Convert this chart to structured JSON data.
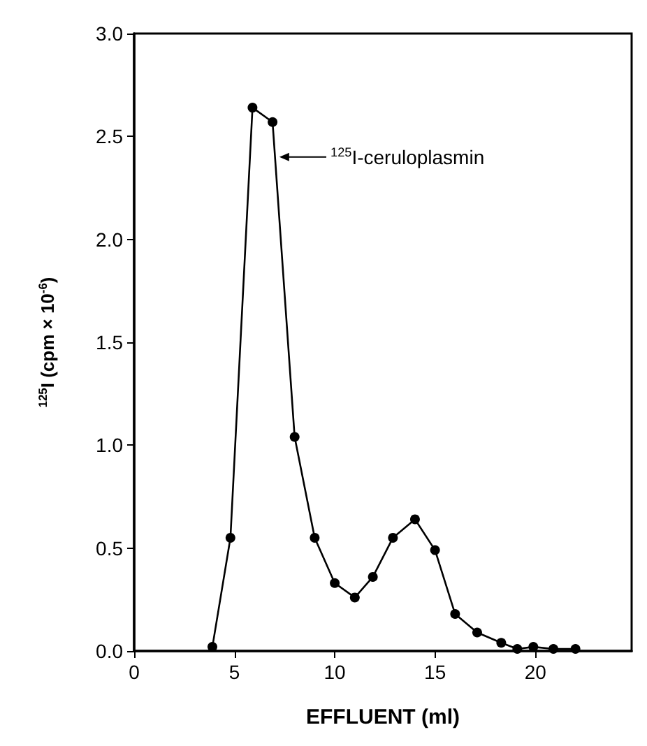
{
  "chart_data": {
    "type": "line",
    "xlabel": "EFFLUENT (ml)",
    "ylabel": "$^{125}$I (cpm × 10$^{-6}$)",
    "x": [
      3.9,
      4.8,
      5.9,
      6.9,
      8.0,
      9.0,
      10.0,
      11.0,
      11.9,
      12.9,
      14.0,
      15.0,
      16.0,
      17.1,
      18.3,
      19.1,
      19.9,
      20.9,
      22.0
    ],
    "series": [
      {
        "color": "#000000",
        "values": [
          0.02,
          0.55,
          2.64,
          2.57,
          1.04,
          0.55,
          0.33,
          0.26,
          0.36,
          0.55,
          0.64,
          0.49,
          0.18,
          0.09,
          0.04,
          0.01,
          0.02,
          0.01,
          0.01
        ]
      }
    ],
    "xlim": [
      0,
      24.8
    ],
    "xticks": [
      0,
      5,
      10,
      15,
      20
    ],
    "ylim": [
      0,
      3.0
    ],
    "yticks": [
      {
        "value": 0,
        "label": "0.0"
      },
      0.5,
      {
        "value": 1,
        "label": "1.0"
      },
      1.5,
      {
        "value": 2,
        "label": "2.0"
      },
      2.5,
      {
        "value": 3,
        "label": "3.0"
      }
    ],
    "annotations": [
      {
        "text": "$^{125}$I-ceruloplasmin",
        "x": 7.1,
        "y": 2.4
      }
    ],
    "marker": "circle",
    "line_style": "solid",
    "grid": false
  }
}
